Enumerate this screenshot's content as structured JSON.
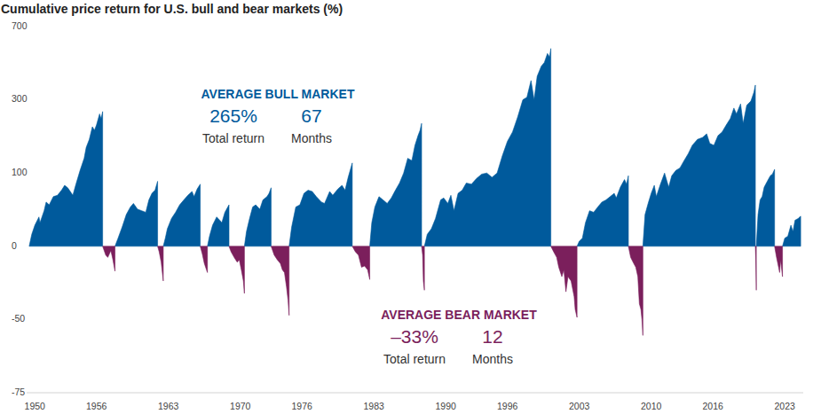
{
  "chart_data": {
    "type": "area",
    "title": "Cumulative price return for U.S. bull and bear markets (%)",
    "log": "y",
    "grid": false,
    "xlim": [
      1949.2,
      2024.8
    ],
    "xticks": [
      1950,
      1956,
      1963,
      1970,
      1976,
      1983,
      1990,
      1996,
      2003,
      2010,
      2016,
      2023
    ],
    "ylim": [
      -75,
      700
    ],
    "yticks": [
      700,
      300,
      100,
      0,
      -50,
      -75
    ],
    "x": [
      1949.45,
      1949.7,
      1950.0,
      1950.4,
      1950.5,
      1950.9,
      1951.1,
      1951.4,
      1951.8,
      1952.2,
      1952.6,
      1952.9,
      1953.2,
      1953.7,
      1954.0,
      1954.4,
      1954.8,
      1955.0,
      1955.3,
      1955.6,
      1955.8,
      1956.0,
      1956.3,
      1956.45,
      1956.6,
      1956.9,
      1957.1,
      1957.4,
      1957.6,
      1957.8,
      1958.1,
      1958.5,
      1958.9,
      1959.3,
      1959.6,
      1960.0,
      1960.4,
      1960.8,
      1961.1,
      1961.4,
      1961.7,
      1961.95,
      1962.1,
      1962.3,
      1962.5,
      1962.7,
      1962.9,
      1963.3,
      1963.7,
      1964.1,
      1964.5,
      1964.9,
      1965.3,
      1965.5,
      1965.8,
      1966.1,
      1966.3,
      1966.5,
      1966.8,
      1967.0,
      1967.3,
      1967.7,
      1968.0,
      1968.2,
      1968.5,
      1968.9,
      1969.1,
      1969.4,
      1969.7,
      1969.9,
      1970.1,
      1970.3,
      1970.4,
      1970.6,
      1970.9,
      1971.2,
      1971.5,
      1971.9,
      1972.2,
      1972.6,
      1972.8,
      1973.0,
      1973.3,
      1973.6,
      1973.9,
      1974.1,
      1974.3,
      1974.5,
      1974.65,
      1974.75,
      1975.0,
      1975.4,
      1975.8,
      1976.2,
      1976.6,
      1977.0,
      1977.4,
      1977.9,
      1978.2,
      1978.7,
      1979.0,
      1979.5,
      1979.9,
      1980.2,
      1980.5,
      1980.9,
      1981.2,
      1981.5,
      1981.8,
      1982.1,
      1982.4,
      1982.6,
      1982.8,
      1983.1,
      1983.5,
      1983.9,
      1984.3,
      1984.7,
      1985.1,
      1985.5,
      1985.9,
      1986.3,
      1986.7,
      1987.0,
      1987.3,
      1987.5,
      1987.65,
      1987.75,
      1987.82,
      1987.92,
      1988.2,
      1988.6,
      1989.0,
      1989.5,
      1989.8,
      1990.2,
      1990.5,
      1990.8,
      1991.2,
      1991.6,
      1992.0,
      1992.5,
      1993.0,
      1993.5,
      1994.0,
      1994.5,
      1995.0,
      1995.5,
      1996.0,
      1996.5,
      1997.0,
      1997.5,
      1997.9,
      1998.3,
      1998.6,
      1998.9,
      1999.3,
      1999.6,
      1999.9,
      2000.1,
      2000.23,
      2000.5,
      2000.8,
      2001.0,
      2001.3,
      2001.5,
      2001.7,
      2001.9,
      2002.2,
      2002.5,
      2002.6,
      2002.78,
      2003.0,
      2003.3,
      2003.6,
      2004.0,
      2004.4,
      2004.8,
      2005.2,
      2005.6,
      2006.0,
      2006.4,
      2006.6,
      2007.0,
      2007.4,
      2007.6,
      2007.78,
      2008.0,
      2008.3,
      2008.5,
      2008.7,
      2008.85,
      2009.0,
      2009.1,
      2009.19,
      2009.4,
      2009.7,
      2010.0,
      2010.3,
      2010.5,
      2010.9,
      2011.3,
      2011.7,
      2012.0,
      2012.4,
      2012.8,
      2013.2,
      2013.6,
      2014.0,
      2014.5,
      2015.0,
      2015.4,
      2015.7,
      2016.1,
      2016.5,
      2016.9,
      2017.3,
      2017.7,
      2018.05,
      2018.3,
      2018.7,
      2018.95,
      2019.3,
      2019.7,
      2020.0,
      2020.14,
      2020.18,
      2020.23,
      2020.4,
      2020.6,
      2020.8,
      2021.0,
      2021.3,
      2021.6,
      2021.8,
      2022.01,
      2022.2,
      2022.4,
      2022.5,
      2022.6,
      2022.78,
      2023.0,
      2023.3,
      2023.6,
      2023.8,
      2024.0,
      2024.3,
      2024.55
    ],
    "series": [
      {
        "color": "#005a9c",
        "values": [
          0,
          12,
          22,
          32,
          25,
          40,
          52,
          48,
          60,
          62,
          70,
          78,
          74,
          62,
          80,
          105,
          130,
          155,
          175,
          210,
          200,
          215,
          250,
          235,
          258,
          null,
          null,
          null,
          null,
          0,
          8,
          20,
          35,
          45,
          50,
          42,
          40,
          38,
          55,
          65,
          70,
          85,
          null,
          null,
          0,
          8,
          18,
          30,
          38,
          48,
          55,
          62,
          68,
          60,
          72,
          80,
          null,
          null,
          0,
          10,
          22,
          32,
          28,
          25,
          38,
          48,
          null,
          null,
          null,
          null,
          null,
          null,
          0,
          15,
          30,
          45,
          48,
          42,
          55,
          60,
          65,
          74,
          null,
          null,
          null,
          null,
          null,
          null,
          null,
          0,
          20,
          45,
          48,
          65,
          70,
          68,
          60,
          52,
          50,
          68,
          62,
          72,
          78,
          70,
          92,
          120,
          null,
          null,
          null,
          null,
          null,
          0,
          25,
          45,
          60,
          55,
          50,
          58,
          70,
          82,
          100,
          130,
          125,
          160,
          185,
          200,
          220,
          null,
          null,
          0,
          12,
          18,
          30,
          55,
          58,
          50,
          62,
          40,
          65,
          70,
          82,
          80,
          90,
          98,
          100,
          92,
          100,
          135,
          170,
          195,
          240,
          300,
          310,
          380,
          300,
          400,
          450,
          470,
          520,
          500,
          550,
          null,
          null,
          null,
          null,
          null,
          null,
          null,
          null,
          null,
          null,
          0,
          5,
          8,
          25,
          40,
          38,
          45,
          52,
          55,
          60,
          65,
          58,
          75,
          88,
          80,
          95,
          null,
          null,
          null,
          null,
          null,
          null,
          null,
          0,
          35,
          50,
          65,
          78,
          60,
          80,
          100,
          75,
          95,
          105,
          110,
          125,
          140,
          160,
          175,
          180,
          190,
          165,
          160,
          185,
          195,
          215,
          235,
          270,
          250,
          285,
          220,
          280,
          295,
          330,
          360,
          null,
          0,
          35,
          55,
          60,
          75,
          85,
          95,
          98,
          107,
          null,
          null,
          null,
          null,
          0,
          8,
          10,
          22,
          15,
          28,
          30,
          33
        ]
      },
      {
        "color": "#7b1f5c",
        "values": [
          null,
          null,
          null,
          null,
          null,
          null,
          null,
          null,
          null,
          null,
          null,
          null,
          null,
          null,
          null,
          null,
          null,
          null,
          null,
          null,
          null,
          null,
          null,
          null,
          0,
          -8,
          -10,
          -4,
          -12,
          -21,
          null,
          null,
          null,
          null,
          null,
          null,
          null,
          null,
          null,
          null,
          null,
          0,
          -5,
          -14,
          -28,
          null,
          null,
          null,
          null,
          null,
          null,
          null,
          null,
          null,
          null,
          0,
          -7,
          -15,
          -22,
          null,
          null,
          null,
          null,
          null,
          null,
          0,
          -5,
          -10,
          -14,
          -12,
          -20,
          -28,
          -36,
          null,
          null,
          null,
          null,
          null,
          null,
          null,
          null,
          0,
          -8,
          -12,
          -15,
          -20,
          -22,
          -32,
          -40,
          -48,
          null,
          null,
          null,
          null,
          null,
          null,
          null,
          null,
          null,
          null,
          null,
          null,
          null,
          null,
          null,
          0,
          -5,
          -8,
          -18,
          -17,
          -20,
          -27,
          null,
          null,
          null,
          null,
          null,
          null,
          null,
          null,
          null,
          null,
          null,
          null,
          null,
          null,
          0,
          -8,
          -28,
          -34,
          null,
          null,
          null,
          null,
          null,
          null,
          null,
          null,
          null,
          null,
          null,
          null,
          null,
          null,
          null,
          null,
          null,
          null,
          null,
          null,
          null,
          null,
          null,
          null,
          null,
          null,
          null,
          null,
          null,
          null,
          0,
          -5,
          -10,
          -18,
          -25,
          -20,
          -35,
          -25,
          -28,
          -38,
          -45,
          -49,
          null,
          null,
          null,
          null,
          null,
          null,
          null,
          null,
          null,
          null,
          null,
          null,
          null,
          null,
          0,
          -10,
          -15,
          -18,
          -25,
          -42,
          -45,
          -50,
          -57,
          null,
          null,
          null,
          null,
          null,
          null,
          null,
          null,
          null,
          null,
          null,
          null,
          null,
          null,
          null,
          null,
          null,
          null,
          null,
          null,
          null,
          null,
          null,
          null,
          null,
          null,
          null,
          null,
          null,
          null,
          0,
          -12,
          -34,
          null,
          null,
          null,
          null,
          null,
          null,
          null,
          0,
          -10,
          -18,
          -22,
          -12,
          -25,
          null,
          null,
          null,
          null,
          null,
          null,
          null
        ]
      }
    ],
    "annotations": [
      {
        "title": "AVERAGE BULL MARKET",
        "stats": [
          {
            "value": "265%",
            "label": "Total return"
          },
          {
            "value": "67",
            "label": "Months"
          }
        ]
      },
      {
        "title": "AVERAGE BEAR MARKET",
        "stats": [
          {
            "value": "–33%",
            "label": "Total return"
          },
          {
            "value": "12",
            "label": "Months"
          }
        ]
      }
    ]
  }
}
